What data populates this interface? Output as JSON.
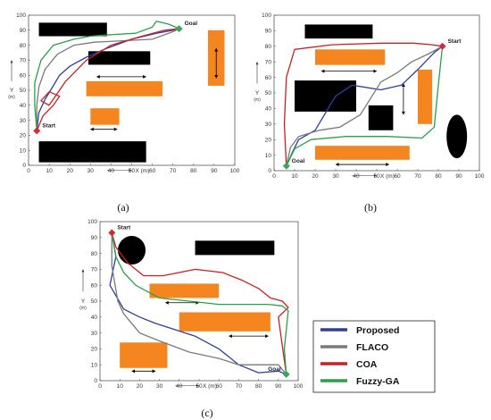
{
  "colors": {
    "proposed": "#2e3f9e",
    "flaco": "#7a7a7a",
    "coa": "#cc1f1f",
    "fuzzy_ga": "#2aa14a",
    "obstacle_static": "#000000",
    "obstacle_dynamic": "#f5861f",
    "start_marker": "#d9282f",
    "goal_marker": "#3aa655"
  },
  "legend": [
    {
      "key": "proposed",
      "label": "Proposed"
    },
    {
      "key": "flaco",
      "label": "FLACO"
    },
    {
      "key": "coa",
      "label": "COA"
    },
    {
      "key": "fuzzy_ga",
      "label": "Fuzzy-GA"
    }
  ],
  "chart_data": [
    {
      "type": "line",
      "caption": "(a)",
      "xlabel": "X (m)",
      "ylabel": "Y",
      "yunit": "(m)",
      "xlim": [
        0,
        100
      ],
      "ylim": [
        0,
        100
      ],
      "xticks": [
        0,
        10,
        20,
        30,
        40,
        50,
        60,
        70,
        80,
        90,
        100
      ],
      "yticks": [
        0,
        10,
        20,
        30,
        40,
        50,
        60,
        70,
        80,
        90,
        100
      ],
      "start": {
        "label": "Start",
        "x": 4,
        "y": 23
      },
      "goal": {
        "label": "Goal",
        "x": 73,
        "y": 91
      },
      "black_obstacles": [
        [
          5,
          86,
          38,
          95
        ],
        [
          29,
          67,
          59,
          76
        ],
        [
          5,
          2,
          57,
          16
        ]
      ],
      "orange_obstacles": [
        [
          28,
          46,
          65,
          56
        ],
        [
          30,
          27,
          44,
          38
        ],
        [
          87,
          53,
          95,
          90
        ]
      ],
      "arrows": [
        [
          33,
          59,
          57,
          59
        ],
        [
          30,
          24,
          43,
          24
        ],
        [
          91,
          78,
          91,
          58
        ]
      ],
      "series": [
        {
          "key": "proposed",
          "x": [
            4,
            5,
            8,
            12,
            15,
            20,
            28,
            38,
            50,
            62,
            70,
            73
          ],
          "y": [
            23,
            35,
            44,
            53,
            60,
            66,
            72,
            78,
            84,
            88,
            90,
            91
          ]
        },
        {
          "key": "flaco",
          "x": [
            4,
            4,
            5,
            8,
            14,
            22,
            32,
            46,
            60,
            70,
            73
          ],
          "y": [
            23,
            40,
            52,
            64,
            74,
            80,
            82,
            83,
            84,
            89,
            91
          ]
        },
        {
          "key": "coa",
          "x": [
            4,
            7,
            12,
            15,
            10,
            6,
            10,
            18,
            28,
            40,
            55,
            66,
            73
          ],
          "y": [
            23,
            33,
            40,
            46,
            49,
            43,
            40,
            56,
            70,
            80,
            86,
            90,
            91
          ]
        },
        {
          "key": "fuzzy_ga",
          "x": [
            4,
            3,
            3,
            6,
            12,
            22,
            30,
            40,
            52,
            60,
            62,
            68,
            73
          ],
          "y": [
            23,
            40,
            55,
            70,
            80,
            84,
            86,
            87,
            88,
            92,
            96,
            94,
            91
          ]
        }
      ]
    },
    {
      "type": "line",
      "caption": "(b)",
      "xlabel": "X (m)",
      "ylabel": "Y",
      "yunit": "(m)",
      "xlim": [
        0,
        100
      ],
      "ylim": [
        0,
        100
      ],
      "xticks": [
        0,
        10,
        20,
        30,
        40,
        50,
        60,
        70,
        80,
        90,
        100
      ],
      "yticks": [
        0,
        10,
        20,
        30,
        40,
        50,
        60,
        70,
        80,
        90,
        100
      ],
      "start": {
        "label": "Start",
        "x": 82,
        "y": 80
      },
      "goal": {
        "label": "Goal",
        "x": 6,
        "y": 3
      },
      "black_obstacles": [
        [
          15,
          85,
          48,
          94
        ],
        [
          10,
          38,
          40,
          58
        ],
        [
          46,
          26,
          58,
          42
        ]
      ],
      "orange_obstacles": [
        [
          20,
          68,
          54,
          78
        ],
        [
          70,
          30,
          77,
          65
        ],
        [
          20,
          7,
          66,
          16
        ]
      ],
      "arrows": [
        [
          23,
          64,
          50,
          64
        ],
        [
          63,
          56,
          63,
          36
        ],
        [
          30,
          4,
          56,
          4
        ]
      ],
      "ellipse": {
        "cx": 89,
        "cy": 22,
        "rx": 5,
        "ry": 14
      },
      "series": [
        {
          "key": "proposed",
          "x": [
            6,
            9,
            12,
            20,
            25,
            30,
            38,
            52,
            62,
            70,
            78,
            82
          ],
          "y": [
            3,
            12,
            20,
            26,
            37,
            48,
            55,
            52,
            55,
            65,
            76,
            80
          ]
        },
        {
          "key": "flaco",
          "x": [
            6,
            8,
            12,
            22,
            32,
            42,
            52,
            60,
            67,
            75,
            82
          ],
          "y": [
            3,
            15,
            22,
            26,
            28,
            36,
            57,
            63,
            70,
            75,
            80
          ]
        },
        {
          "key": "coa",
          "x": [
            6,
            5,
            6,
            10,
            28,
            52,
            68,
            77,
            82
          ],
          "y": [
            3,
            30,
            60,
            78,
            81,
            82,
            82,
            81,
            80
          ]
        },
        {
          "key": "fuzzy_ga",
          "x": [
            6,
            10,
            18,
            35,
            55,
            72,
            78,
            80,
            82
          ],
          "y": [
            3,
            14,
            20,
            22,
            22,
            21,
            28,
            55,
            80
          ]
        }
      ]
    },
    {
      "type": "line",
      "caption": "(c)",
      "xlabel": "X (m)",
      "ylabel": "Y",
      "yunit": "(m)",
      "xlim": [
        0,
        100
      ],
      "ylim": [
        0,
        100
      ],
      "xticks": [
        0,
        10,
        20,
        30,
        40,
        50,
        60,
        70,
        80,
        90,
        100
      ],
      "yticks": [
        0,
        10,
        20,
        30,
        40,
        50,
        60,
        70,
        80,
        90,
        100
      ],
      "start": {
        "label": "Start",
        "x": 6,
        "y": 93
      },
      "goal": {
        "label": "Goal",
        "x": 94,
        "y": 4
      },
      "black_obstacles": [
        [
          48,
          79,
          88,
          88
        ]
      ],
      "orange_obstacles": [
        [
          25,
          52,
          60,
          61
        ],
        [
          40,
          31,
          86,
          43
        ],
        [
          10,
          8,
          34,
          24
        ]
      ],
      "arrows": [
        [
          33,
          49,
          50,
          49
        ],
        [
          65,
          28,
          85,
          28
        ],
        [
          16,
          6,
          28,
          6
        ]
      ],
      "ellipse": {
        "cx": 16,
        "cy": 82,
        "rx": 7,
        "ry": 9
      },
      "series": [
        {
          "key": "proposed",
          "x": [
            6,
            8,
            5,
            12,
            20,
            28,
            38,
            48,
            60,
            70,
            80,
            90,
            94
          ],
          "y": [
            93,
            78,
            60,
            45,
            40,
            36,
            32,
            28,
            20,
            10,
            5,
            6,
            4
          ]
        },
        {
          "key": "flaco",
          "x": [
            6,
            6,
            9,
            12,
            20,
            30,
            45,
            60,
            70,
            80,
            90,
            94
          ],
          "y": [
            93,
            72,
            50,
            42,
            30,
            25,
            18,
            14,
            10,
            10,
            10,
            4
          ]
        },
        {
          "key": "coa",
          "x": [
            6,
            8,
            14,
            22,
            32,
            48,
            62,
            72,
            80,
            86,
            92,
            95,
            90,
            94
          ],
          "y": [
            93,
            84,
            74,
            66,
            66,
            70,
            68,
            63,
            58,
            52,
            50,
            46,
            40,
            4
          ]
        },
        {
          "key": "fuzzy_ga",
          "x": [
            6,
            8,
            12,
            18,
            30,
            45,
            60,
            75,
            85,
            92,
            95,
            93,
            94
          ],
          "y": [
            93,
            78,
            68,
            60,
            52,
            50,
            48,
            48,
            48,
            47,
            44,
            20,
            4
          ]
        }
      ]
    }
  ]
}
